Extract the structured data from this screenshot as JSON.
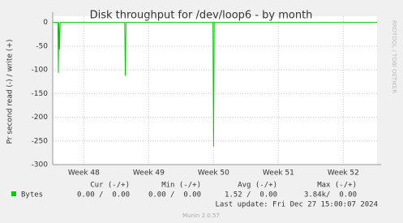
{
  "chart_data": {
    "type": "line",
    "title": "Disk throughput for /dev/loop6 - by month",
    "y_label": "Pr second read (-) / write (+)",
    "side_label": "RRDTOOL / TOBI OETIKER",
    "footer": "Munin 2.0.57",
    "last_update": "Last update: Fri Dec 27 15:00:07 2024",
    "x": [
      47.52,
      47.6,
      47.607,
      47.615,
      47.625,
      47.635,
      48.63,
      48.64,
      48.65,
      49.99,
      50.0,
      50.01,
      52.52
    ],
    "series": [
      {
        "name": "Bytes",
        "color": "#00cc00",
        "values": [
          0,
          0,
          -107,
          0,
          -57,
          0,
          0,
          -113,
          0,
          0,
          -262,
          0,
          0
        ]
      }
    ],
    "xlim": [
      47.52,
      52.52
    ],
    "xticks": [
      {
        "value": 48,
        "label": "Week 48"
      },
      {
        "value": 49,
        "label": "Week 49"
      },
      {
        "value": 50,
        "label": "Week 50"
      },
      {
        "value": 51,
        "label": "Week 51"
      },
      {
        "value": 52,
        "label": "Week 52"
      }
    ],
    "ylim": [
      -300,
      13
    ],
    "yticks": [
      -300,
      -250,
      -200,
      -150,
      -100,
      -50,
      0
    ],
    "grid": true,
    "legend_table": {
      "columns": [
        "Cur (-/+)",
        "Min (-/+)",
        "Avg (-/+)",
        "Max (-/+)"
      ],
      "cells": [
        "0.00 /  0.00",
        "0.00 /  0.00",
        "1.52 /  0.00",
        "3.84k/  0.00"
      ]
    }
  }
}
